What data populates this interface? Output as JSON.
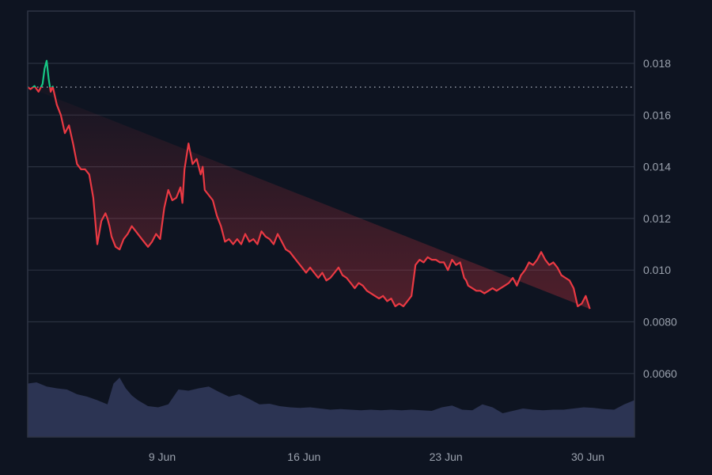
{
  "colors": {
    "background": "#0e1421",
    "grid": "#2a3140",
    "frame": "#2e3544",
    "price_down": "#ea3943",
    "price_up": "#16c784",
    "baseline_dots": "#8a909c",
    "volume_fill": "#2c3453",
    "tick_text": "#9aa1ad"
  },
  "y_axis": {
    "ticks": [
      {
        "label": "0.018",
        "value": 0.018
      },
      {
        "label": "0.016",
        "value": 0.016
      },
      {
        "label": "0.014",
        "value": 0.014
      },
      {
        "label": "0.012",
        "value": 0.012
      },
      {
        "label": "0.010",
        "value": 0.01
      },
      {
        "label": "0.0080",
        "value": 0.008
      },
      {
        "label": "0.0060",
        "value": 0.006
      }
    ]
  },
  "x_axis": {
    "ticks": [
      {
        "label": "9 Jun",
        "day": 9
      },
      {
        "label": "16 Jun",
        "day": 16
      },
      {
        "label": "23 Jun",
        "day": 23
      },
      {
        "label": "30 Jun",
        "day": 30
      }
    ]
  },
  "chart_data": {
    "type": "line",
    "title": "",
    "xlabel": "",
    "ylabel": "",
    "baseline": 0.01708,
    "ylim": [
      0.0043,
      0.0201
    ],
    "xlim_days": [
      2.3,
      32.3
    ],
    "grid": true,
    "legend": "none",
    "series": [
      {
        "name": "price",
        "x_day": [
          2.3,
          2.5,
          2.7,
          2.9,
          3.1,
          3.2,
          3.3,
          3.4,
          3.5,
          3.6,
          3.8,
          4.0,
          4.2,
          4.4,
          4.6,
          4.8,
          5.0,
          5.2,
          5.4,
          5.6,
          5.8,
          6.0,
          6.2,
          6.3,
          6.4,
          6.5,
          6.7,
          6.9,
          7.1,
          7.3,
          7.5,
          7.7,
          7.9,
          8.1,
          8.3,
          8.5,
          8.7,
          8.9,
          9.1,
          9.3,
          9.5,
          9.7,
          9.9,
          10.0,
          10.1,
          10.3,
          10.5,
          10.7,
          10.9,
          11.0,
          11.1,
          11.3,
          11.5,
          11.7,
          11.9,
          12.1,
          12.3,
          12.5,
          12.7,
          12.9,
          13.1,
          13.3,
          13.5,
          13.7,
          13.9,
          14.1,
          14.3,
          14.5,
          14.7,
          14.9,
          15.1,
          15.3,
          15.5,
          15.7,
          15.9,
          16.1,
          16.3,
          16.5,
          16.7,
          16.9,
          17.1,
          17.3,
          17.5,
          17.7,
          17.9,
          18.1,
          18.3,
          18.5,
          18.7,
          18.9,
          19.1,
          19.3,
          19.5,
          19.7,
          19.9,
          20.1,
          20.3,
          20.5,
          20.7,
          20.9,
          21.1,
          21.3,
          21.5,
          21.7,
          21.9,
          22.1,
          22.3,
          22.5,
          22.7,
          22.9,
          23.1,
          23.3,
          23.5,
          23.7,
          23.9,
          24.0,
          24.1,
          24.3,
          24.5,
          24.7,
          24.9,
          25.1,
          25.3,
          25.5,
          25.7,
          25.9,
          26.1,
          26.3,
          26.5,
          26.7,
          26.9,
          27.1,
          27.3,
          27.5,
          27.7,
          27.9,
          28.1,
          28.3,
          28.5,
          28.7,
          28.9,
          29.1,
          29.3,
          29.5,
          29.7,
          29.9,
          30.1,
          30.3,
          30.5,
          30.7,
          30.9,
          31.1,
          31.3,
          31.5,
          31.7,
          31.9,
          32.1,
          32.3
        ],
        "values": [
          0.01708,
          0.017,
          0.01712,
          0.0169,
          0.0172,
          0.0178,
          0.0181,
          0.0174,
          0.0169,
          0.0171,
          0.0164,
          0.016,
          0.0153,
          0.0156,
          0.0149,
          0.0141,
          0.0139,
          0.0139,
          0.0137,
          0.0128,
          0.011,
          0.0119,
          0.0122,
          0.012,
          0.0117,
          0.0113,
          0.0109,
          0.0108,
          0.0112,
          0.0114,
          0.0117,
          0.0115,
          0.0113,
          0.0111,
          0.0109,
          0.0111,
          0.0114,
          0.0112,
          0.0124,
          0.0131,
          0.0127,
          0.0128,
          0.0132,
          0.0126,
          0.0139,
          0.0149,
          0.0141,
          0.0143,
          0.0137,
          0.014,
          0.0131,
          0.0129,
          0.0127,
          0.0121,
          0.0117,
          0.0111,
          0.0112,
          0.011,
          0.0112,
          0.011,
          0.0114,
          0.0111,
          0.0112,
          0.011,
          0.0115,
          0.0113,
          0.0112,
          0.011,
          0.0114,
          0.0111,
          0.0108,
          0.0107,
          0.0105,
          0.0103,
          0.0101,
          0.0099,
          0.0101,
          0.0099,
          0.0097,
          0.0099,
          0.0096,
          0.0097,
          0.0099,
          0.0101,
          0.0098,
          0.0097,
          0.0095,
          0.0093,
          0.0095,
          0.0094,
          0.0092,
          0.0091,
          0.009,
          0.0089,
          0.009,
          0.0088,
          0.0089,
          0.0086,
          0.0087,
          0.0086,
          0.0088,
          0.009,
          0.0102,
          0.0104,
          0.0103,
          0.0105,
          0.0104,
          0.0104,
          0.0103,
          0.0103,
          0.01,
          0.0104,
          0.0102,
          0.0103,
          0.0097,
          0.0096,
          0.0094,
          0.0093,
          0.0092,
          0.0092,
          0.0091,
          0.0092,
          0.0093,
          0.0092,
          0.0093,
          0.0094,
          0.0095,
          0.0097,
          0.0094,
          0.0098,
          0.01,
          0.0103,
          0.0102,
          0.0104,
          0.0107,
          0.0104,
          0.0102,
          0.0103,
          0.0101,
          0.0098,
          0.0097,
          0.0096,
          0.0093,
          0.0086,
          0.0087,
          0.009,
          0.0085
        ]
      },
      {
        "name": "volume",
        "x_day": [
          2.3,
          2.8,
          3.3,
          3.8,
          4.3,
          4.8,
          5.3,
          5.8,
          6.3,
          6.6,
          6.9,
          7.2,
          7.5,
          7.8,
          8.3,
          8.8,
          9.3,
          9.8,
          10.3,
          10.8,
          11.3,
          11.8,
          12.3,
          12.8,
          13.3,
          13.8,
          14.3,
          14.8,
          15.3,
          15.8,
          16.3,
          16.8,
          17.3,
          17.8,
          18.3,
          18.8,
          19.3,
          19.8,
          20.3,
          20.8,
          21.3,
          21.8,
          22.3,
          22.8,
          23.3,
          23.8,
          24.3,
          24.8,
          25.3,
          25.8,
          26.3,
          26.8,
          27.3,
          27.8,
          28.3,
          28.8,
          29.3,
          29.8,
          30.3,
          30.8,
          31.3,
          31.8,
          32.3
        ],
        "relative_height": [
          0.9,
          0.92,
          0.85,
          0.82,
          0.8,
          0.72,
          0.68,
          0.62,
          0.55,
          0.9,
          1.0,
          0.82,
          0.7,
          0.62,
          0.52,
          0.5,
          0.55,
          0.8,
          0.78,
          0.82,
          0.85,
          0.76,
          0.68,
          0.72,
          0.64,
          0.55,
          0.56,
          0.52,
          0.5,
          0.49,
          0.5,
          0.48,
          0.46,
          0.47,
          0.46,
          0.45,
          0.46,
          0.45,
          0.46,
          0.45,
          0.46,
          0.45,
          0.44,
          0.5,
          0.53,
          0.46,
          0.45,
          0.55,
          0.5,
          0.4,
          0.44,
          0.48,
          0.46,
          0.45,
          0.46,
          0.46,
          0.48,
          0.5,
          0.49,
          0.47,
          0.46,
          0.55,
          0.62
        ]
      }
    ]
  }
}
